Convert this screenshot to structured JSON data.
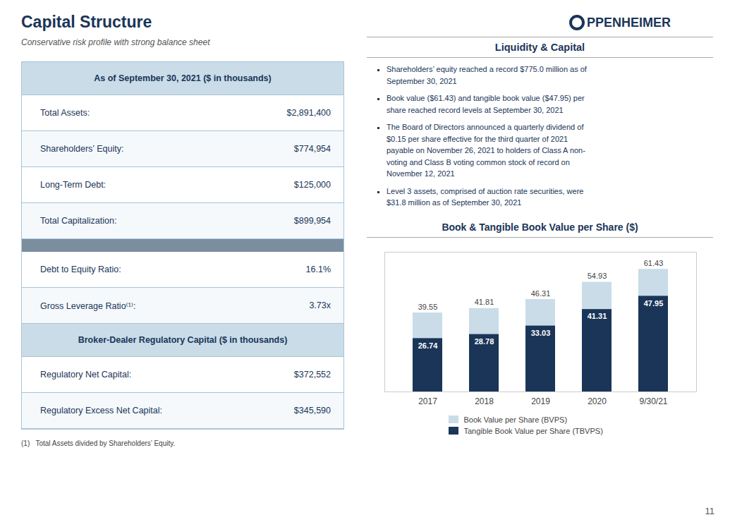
{
  "title": "Capital Structure",
  "subtitle": "Conservative risk profile with strong balance sheet",
  "table": [
    [
      "As of September 30, 2021 ($ in thousands)"
    ],
    [
      "Total Assets:",
      "$2,891,400"
    ],
    [
      "Shareholders’ Equity:",
      "$774,954"
    ],
    [
      "Long-Term Debt:",
      "$125,000"
    ],
    [
      "Total Capitalization:",
      "$899,954"
    ],
    [],
    [
      "Debt to Equity Ratio:",
      "16.1%"
    ],
    [
      "Gross Leverage Ratio⁽¹⁾:",
      "3.73x"
    ],
    [
      "Broker-Dealer Regulatory Capital ($ in thousands)"
    ],
    [
      "Regulatory Net Capital:",
      "$372,552"
    ],
    [
      "Regulatory Excess Net Capital:",
      "$345,590"
    ]
  ],
  "footnote": "(1)   Total Assets divided by Shareholders’ Equity.",
  "annotations": [
    "PPENHEIMER",
    "Liquidity & Capital",
    "Shareholders’ equity reached a record $775.0 million as of\nSeptember 30, 2021",
    "Book value ($61.43) and tangible book value ($47.95) per\nshare reached record levels at September 30, 2021",
    "The Board of Directors announced a quarterly dividend of\n$0.15 per share effective for the third quarter of 2021\npayable on November 26, 2021 to holders of Class A non-\nvoting and Class B voting common stock of record on\nNovember 12, 2021",
    "Level 3 assets, comprised of auction rate securities, were\n$31.8 million as of September 30, 2021",
    "11"
  ],
  "chart_data": {
    "type": "bar",
    "title": "Book & Tangible Book Value per Share ($)",
    "categories": [
      "2017",
      "2018",
      "2019",
      "2020",
      "9/30/21"
    ],
    "series": [
      {
        "name": "Book Value per Share (BVPS)",
        "color": "#c9dce8",
        "values": [
          39.55,
          41.81,
          46.31,
          54.93,
          61.43
        ]
      },
      {
        "name": "Tangible Book Value per Share (TBVPS)",
        "color": "#1a3558",
        "values": [
          26.74,
          28.78,
          33.03,
          41.31,
          47.95
        ]
      }
    ],
    "ylim": [
      0,
      70
    ],
    "stacked": false,
    "grid": false,
    "data_labels": true,
    "tick_labels": "x",
    "legend": "bottom"
  }
}
